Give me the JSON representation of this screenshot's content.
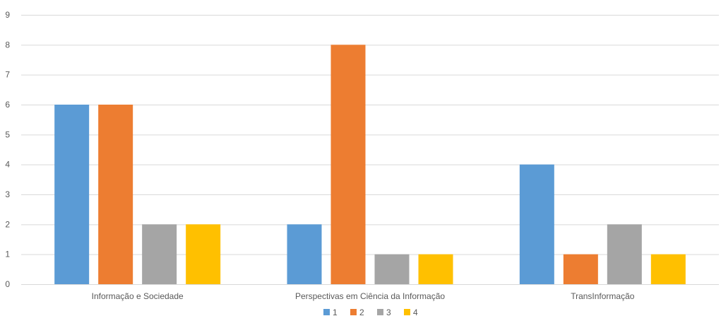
{
  "chart_data": {
    "type": "bar",
    "categories": [
      "Informação e Sociedade",
      "Perspectivas em Ciência da Informação",
      "TransInformação"
    ],
    "series": [
      {
        "name": "1",
        "color": "#5b9bd5",
        "values": [
          6,
          2,
          4
        ]
      },
      {
        "name": "2",
        "color": "#ed7d31",
        "values": [
          6,
          8,
          1
        ]
      },
      {
        "name": "3",
        "color": "#a5a5a5",
        "values": [
          2,
          1,
          2
        ]
      },
      {
        "name": "4",
        "color": "#ffc000",
        "values": [
          2,
          1,
          1
        ]
      }
    ],
    "ylim": [
      0,
      9
    ],
    "yticks": [
      "0",
      "1",
      "2",
      "3",
      "4",
      "5",
      "6",
      "7",
      "8",
      "9"
    ],
    "grid": true,
    "legend_position": "bottom"
  }
}
